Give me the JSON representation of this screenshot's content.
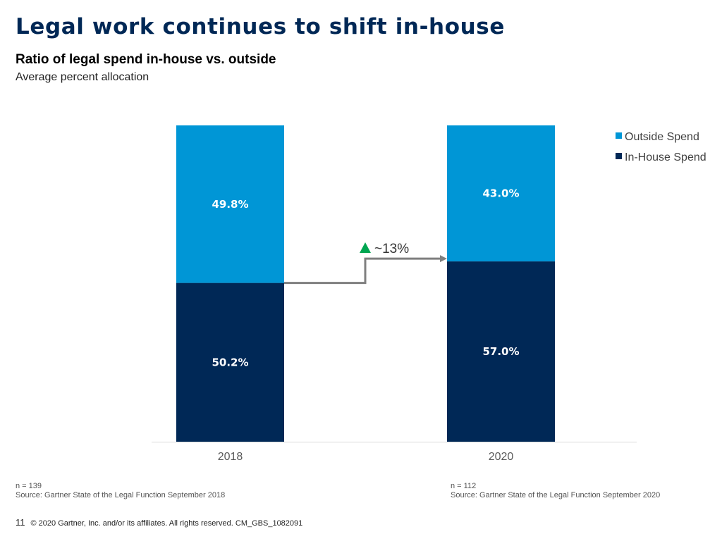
{
  "page": {
    "title": "Legal work continues to shift in-house",
    "page_number": "11",
    "copyright": "© 2020 Gartner, Inc. and/or its affiliates. All rights reserved. CM_GBS_1082091"
  },
  "notes": [
    {
      "n": "n = 139",
      "source": "Source: Gartner State of the Legal Function September 2018"
    },
    {
      "n": "n = 112",
      "source": "Source: Gartner State of the Legal Function September 2020"
    }
  ],
  "colors": {
    "outside": "#0096D6",
    "inhouse": "#002856",
    "arrow": "#7F7F7F",
    "up_triangle": "#00A651",
    "axis": "#D9D9D9"
  },
  "chart_data": {
    "type": "bar",
    "stacked": true,
    "title": "Ratio of legal spend in-house vs. outside",
    "subtitle": "Average percent allocation",
    "xlabel": "",
    "ylabel": "",
    "ylim": [
      0,
      100
    ],
    "grid": false,
    "categories": [
      "2018",
      "2020"
    ],
    "series": [
      {
        "name": "In-House Spend",
        "values": [
          50.2,
          57.0
        ],
        "labels": [
          "50.2%",
          "57.0%"
        ],
        "color_key": "inhouse"
      },
      {
        "name": "Outside Spend",
        "values": [
          49.8,
          43.0
        ],
        "labels": [
          "49.8%",
          "43.0%"
        ],
        "color_key": "outside"
      }
    ],
    "legend": {
      "position": "top-right",
      "order": [
        "Outside Spend",
        "In-House Spend"
      ]
    },
    "annotation": {
      "text": "~13%",
      "direction": "up",
      "from": "2018 In-House Spend",
      "to": "2020 In-House Spend"
    }
  }
}
